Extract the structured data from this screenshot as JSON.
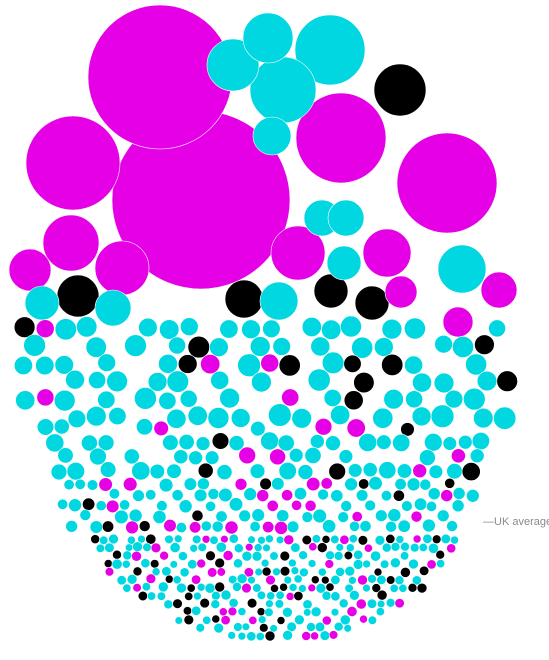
{
  "chart_data": {
    "type": "bubble",
    "title": "",
    "xlabel": "",
    "ylabel": "",
    "colors": {
      "magenta": "#e600e6",
      "cyan": "#00d7e0",
      "black": "#000000"
    },
    "reference_line": {
      "label": "—UK average"
    },
    "large_bubbles": [
      {
        "color": "magenta",
        "size": 89
      },
      {
        "color": "magenta",
        "size": 72
      },
      {
        "color": "magenta",
        "size": 50
      },
      {
        "color": "magenta",
        "size": 47
      },
      {
        "color": "magenta",
        "size": 45
      },
      {
        "color": "cyan",
        "size": 35
      },
      {
        "color": "cyan",
        "size": 33
      },
      {
        "color": "cyan",
        "size": 26
      },
      {
        "color": "cyan",
        "size": 25
      },
      {
        "color": "black",
        "size": 26
      },
      {
        "color": "magenta",
        "size": 28
      },
      {
        "color": "magenta",
        "size": 27
      },
      {
        "color": "magenta",
        "size": 27
      },
      {
        "color": "magenta",
        "size": 24
      },
      {
        "color": "cyan",
        "size": 24
      },
      {
        "color": "magenta",
        "size": 21
      },
      {
        "color": "cyan",
        "size": 19
      },
      {
        "color": "cyan",
        "size": 18
      },
      {
        "color": "cyan",
        "size": 18
      },
      {
        "color": "black",
        "size": 21
      },
      {
        "color": "black",
        "size": 19
      },
      {
        "color": "black",
        "size": 17
      },
      {
        "color": "black",
        "size": 17
      },
      {
        "color": "magenta",
        "size": 18
      },
      {
        "color": "cyan",
        "size": 19
      },
      {
        "color": "cyan",
        "size": 17
      },
      {
        "color": "magenta",
        "size": 16
      },
      {
        "color": "cyan",
        "size": 18
      },
      {
        "color": "cyan",
        "size": 17
      },
      {
        "color": "magenta",
        "size": 15
      }
    ],
    "bands": [
      {
        "color_mix": {
          "cyan": 0.78,
          "magenta": 0.12,
          "black": 0.1
        },
        "size": 10
      },
      {
        "color_mix": {
          "cyan": 0.78,
          "magenta": 0.12,
          "black": 0.1
        },
        "size": 8
      },
      {
        "color_mix": {
          "cyan": 0.7,
          "magenta": 0.2,
          "black": 0.1
        },
        "size": 6
      },
      {
        "color_mix": {
          "cyan": 0.62,
          "magenta": 0.2,
          "black": 0.18
        },
        "size": 4.5
      }
    ]
  }
}
